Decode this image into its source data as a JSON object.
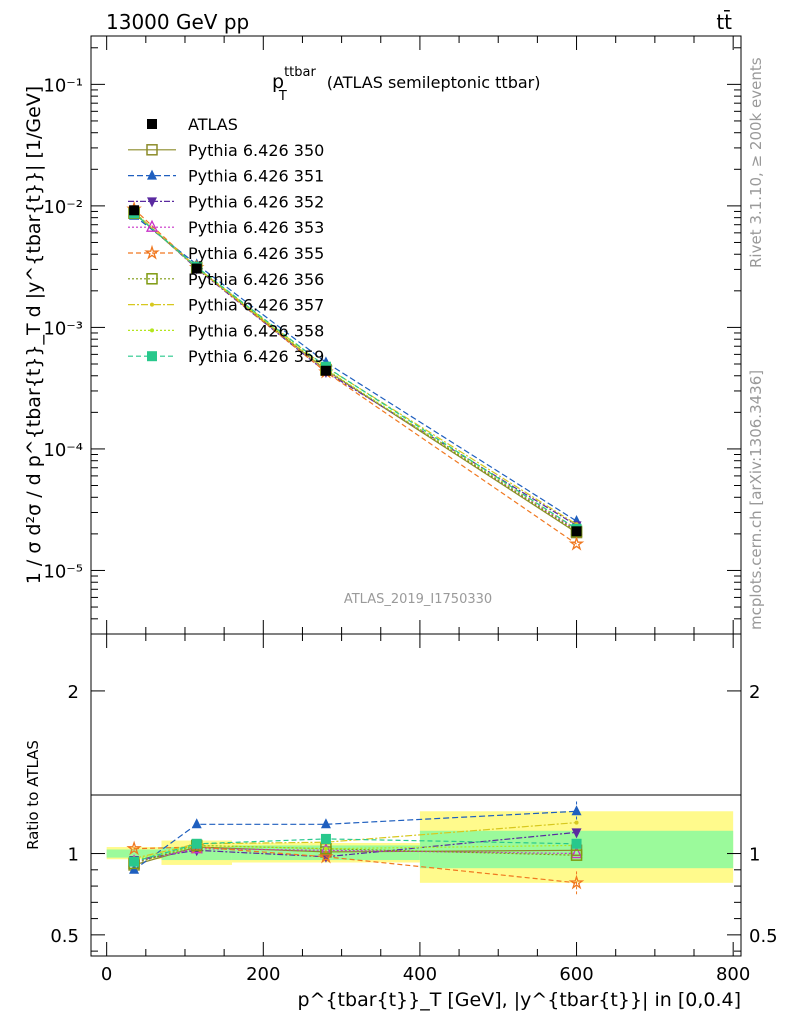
{
  "header": {
    "left": "13000 GeV pp",
    "right": "tt̄",
    "side_right_top": "Rivet 3.1.10, ≥ 200k events",
    "side_right_bottom": "mcplots.cern.ch [arXiv:1306.3436]",
    "watermark": "ATLAS_2019_I1750330"
  },
  "chart_data": [
    {
      "type": "line",
      "panel": "main",
      "title": "p_T^{ttbar} (ATLAS semileptonic ttbar)",
      "title_main": "p",
      "title_sup": "ttbar",
      "title_sub": "T",
      "title_rest": "(ATLAS semileptonic ttbar)",
      "ylabel": "1 / σ d²σ / d p^{tbar{t}}_T d |y^{tbar{t}}| [1/GeV]",
      "yscale": "log",
      "ylim": [
        3e-06,
        0.25
      ],
      "xlim": [
        -20,
        810
      ],
      "x": [
        35,
        115,
        280,
        600
      ],
      "ytick_labels": [
        "10⁻⁵",
        "10⁻⁴",
        "10⁻³",
        "10⁻²",
        "10⁻¹"
      ],
      "ytick_values": [
        1e-05,
        0.0001,
        0.001,
        0.01,
        0.1
      ],
      "legend_position": "top-left",
      "series": [
        {
          "name": "ATLAS",
          "color": "#000000",
          "marker": "filled-square",
          "values": [
            0.0092,
            0.00305,
            0.00044,
            2.1e-05
          ],
          "errors": [
            0.0001,
            5e-05,
            1e-05,
            1.5e-06
          ]
        },
        {
          "name": "Pythia 6.426 350",
          "color": "#8c8c2a",
          "marker": "open-square",
          "dash": "solid",
          "values": [
            0.0087,
            0.0031,
            0.000445,
            2.05e-05
          ]
        },
        {
          "name": "Pythia 6.426 351",
          "color": "#1f5fbf",
          "marker": "triangle-up",
          "dash": "6,3",
          "values": [
            0.0083,
            0.0033,
            0.000515,
            2.55e-05
          ]
        },
        {
          "name": "Pythia 6.426 352",
          "color": "#5a2aa0",
          "marker": "triangle-down",
          "dash": "6,2,2,2",
          "values": [
            0.0089,
            0.00305,
            0.00043,
            2.35e-05
          ]
        },
        {
          "name": "Pythia 6.426 353",
          "color": "#c832c8",
          "marker": "open-triangle",
          "dash": "2,2",
          "values": [
            0.0088,
            0.0031,
            0.000445,
            2.15e-05
          ]
        },
        {
          "name": "Pythia 6.426 355",
          "color": "#f07820",
          "marker": "open-star",
          "dash": "5,3",
          "values": [
            0.0094,
            0.0031,
            0.00043,
            1.65e-05
          ]
        },
        {
          "name": "Pythia 6.426 356",
          "color": "#7f9a10",
          "marker": "open-square",
          "dash": "2,2",
          "values": [
            0.0087,
            0.00312,
            0.00045,
            2.1e-05
          ]
        },
        {
          "name": "Pythia 6.426 357",
          "color": "#d7c81e",
          "marker": "dot",
          "dash": "7,2,2,2",
          "values": [
            0.0088,
            0.00312,
            0.00047,
            2.4e-05
          ]
        },
        {
          "name": "Pythia 6.426 358",
          "color": "#b4e61e",
          "marker": "dot",
          "dash": "2,2",
          "values": [
            0.0089,
            0.0031,
            0.00045,
            2.2e-05
          ]
        },
        {
          "name": "Pythia 6.426 359",
          "color": "#28c88c",
          "marker": "filled-square",
          "dash": "5,3",
          "values": [
            0.0087,
            0.00315,
            0.000475,
            2.2e-05
          ]
        }
      ]
    },
    {
      "type": "line",
      "panel": "ratio",
      "ylabel": "Ratio to ATLAS",
      "xlabel": "p^{tbar{t}}_T [GeV], |y^{tbar{t}}| in [0,0.4]",
      "ylim": [
        0.37,
        2.35
      ],
      "xlim": [
        -20,
        810
      ],
      "x": [
        35,
        115,
        280,
        600
      ],
      "xtick_labels": [
        "0",
        "200",
        "400",
        "600",
        "800"
      ],
      "xtick_values": [
        0,
        200,
        400,
        600,
        800
      ],
      "ytick_labels": [
        "0.5",
        "1",
        "2"
      ],
      "ytick_values": [
        0.5,
        1,
        2
      ],
      "bins": [
        [
          0,
          70
        ],
        [
          70,
          160
        ],
        [
          160,
          400
        ],
        [
          400,
          800
        ]
      ],
      "band_green": [
        [
          0.975,
          1.025
        ],
        [
          0.96,
          1.04
        ],
        [
          0.96,
          1.05
        ],
        [
          0.91,
          1.14
        ]
      ],
      "band_yellow": [
        [
          0.965,
          1.04
        ],
        [
          0.93,
          1.08
        ],
        [
          0.945,
          1.065
        ],
        [
          0.82,
          1.26
        ]
      ],
      "series": [
        {
          "name": "Pythia 6.426 350",
          "values": [
            0.93,
            1.04,
            1.01,
            1.02
          ]
        },
        {
          "name": "Pythia 6.426 351",
          "values": [
            0.9,
            1.18,
            1.18,
            1.26
          ],
          "errors": [
            0.01,
            0.015,
            0.02,
            0.06
          ]
        },
        {
          "name": "Pythia 6.426 352",
          "values": [
            0.96,
            1.02,
            0.98,
            1.13
          ]
        },
        {
          "name": "Pythia 6.426 353",
          "values": [
            0.95,
            1.03,
            1.02,
            1.0
          ]
        },
        {
          "name": "Pythia 6.426 355",
          "values": [
            1.03,
            1.04,
            0.98,
            0.82
          ],
          "errors": [
            0.01,
            0.015,
            0.02,
            0.07
          ]
        },
        {
          "name": "Pythia 6.426 356",
          "values": [
            0.94,
            1.05,
            1.03,
            0.99
          ]
        },
        {
          "name": "Pythia 6.426 357",
          "values": [
            0.97,
            1.06,
            1.07,
            1.19
          ]
        },
        {
          "name": "Pythia 6.426 358",
          "values": [
            0.96,
            1.05,
            1.03,
            1.05
          ]
        },
        {
          "name": "Pythia 6.426 359",
          "values": [
            0.95,
            1.06,
            1.09,
            1.06
          ]
        }
      ]
    }
  ]
}
